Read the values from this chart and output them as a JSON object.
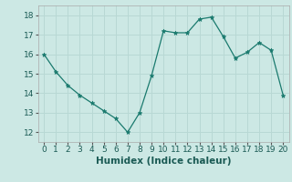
{
  "x": [
    0,
    1,
    2,
    3,
    4,
    5,
    6,
    7,
    8,
    9,
    10,
    11,
    12,
    13,
    14,
    15,
    16,
    17,
    18,
    19,
    20
  ],
  "y": [
    16.0,
    15.1,
    14.4,
    13.9,
    13.5,
    13.1,
    12.7,
    12.0,
    13.0,
    14.9,
    17.2,
    17.1,
    17.1,
    17.8,
    17.9,
    16.9,
    15.8,
    16.1,
    16.6,
    16.2,
    13.9
  ],
  "line_color": "#1a7a6e",
  "marker": "*",
  "marker_size": 3.5,
  "bg_color": "#cce8e4",
  "grid_color": "#b8d8d4",
  "xlabel": "Humidex (Indice chaleur)",
  "xlabel_fontsize": 7.5,
  "tick_fontsize": 6.5,
  "ylim": [
    11.5,
    18.5
  ],
  "xlim": [
    -0.5,
    20.5
  ],
  "yticks": [
    12,
    13,
    14,
    15,
    16,
    17,
    18
  ],
  "xticks": [
    0,
    1,
    2,
    3,
    4,
    5,
    6,
    7,
    8,
    9,
    10,
    11,
    12,
    13,
    14,
    15,
    16,
    17,
    18,
    19,
    20
  ]
}
